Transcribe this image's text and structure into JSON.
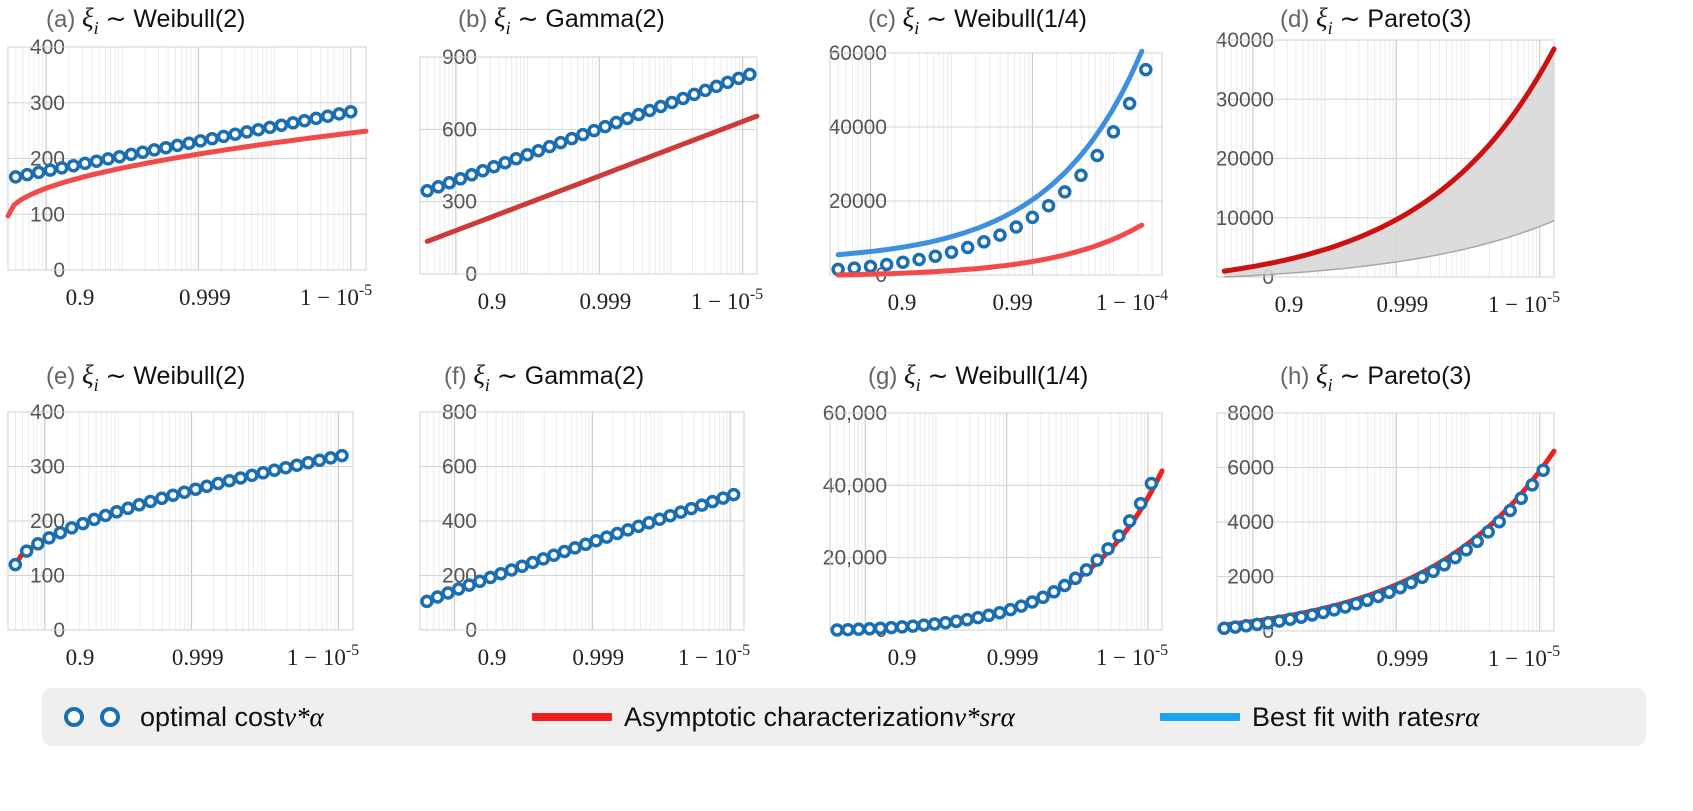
{
  "chart_data": [
    {
      "id": "a",
      "type": "line",
      "title": {
        "prefix": "(a)",
        "xi": "ξ",
        "sub": "i",
        "rest": "∼ Weibull(2)"
      },
      "xtick_labels": [
        "0.9",
        "0.999",
        "1 − 10^-5"
      ],
      "yticks": [
        {
          "value": 0,
          "label": "0"
        },
        {
          "value": 100,
          "label": "100"
        },
        {
          "value": 200,
          "label": "200"
        },
        {
          "value": 300,
          "label": "300"
        },
        {
          "value": 400,
          "label": "400"
        }
      ],
      "ylim": [
        0,
        400
      ],
      "xlim": [
        0.5,
        5.2
      ],
      "series": [
        {
          "name": "optimal cost v*_α",
          "kind": "markers",
          "color": "#1b6fb0",
          "from": 0.6,
          "to": 5.0,
          "n": 30,
          "y0": 167,
          "y1": 284,
          "shape": 1
        },
        {
          "name": "Asymptotic characterization v* s^r_α",
          "kind": "line",
          "color": "#f24a4a",
          "from": 0.5,
          "to": 5.2,
          "n": 60,
          "y0": 97,
          "y1": 249,
          "shape": 0.5
        }
      ]
    },
    {
      "id": "b",
      "type": "line",
      "title": {
        "prefix": "(b)",
        "xi": "ξ",
        "sub": "i",
        "rest": "∼ Gamma(2)"
      },
      "xtick_labels": [
        "0.9",
        "0.999",
        "1 − 10^-5"
      ],
      "yticks": [
        {
          "value": 0,
          "label": "0"
        },
        {
          "value": 300,
          "label": "300"
        },
        {
          "value": 600,
          "label": "600"
        },
        {
          "value": 900,
          "label": "900"
        }
      ],
      "ylim": [
        0,
        900
      ],
      "xlim": [
        0.5,
        5.2
      ],
      "series": [
        {
          "name": "optimal cost v*_α",
          "kind": "markers",
          "color": "#1b6fb0",
          "from": 0.6,
          "to": 5.1,
          "n": 30,
          "y0": 345,
          "y1": 828,
          "shape": 1
        },
        {
          "name": "Asymptotic characterization v* s^r_α",
          "kind": "line",
          "color": "#cc3a3a",
          "from": 0.6,
          "to": 5.2,
          "n": 60,
          "y0": 135,
          "y1": 655,
          "shape": 1
        }
      ]
    },
    {
      "id": "c",
      "type": "line",
      "title": {
        "prefix": "(c)",
        "xi": "ξ",
        "sub": "i",
        "rest": "∼ Weibull(1/4)"
      },
      "xtick_labels": [
        "0.9",
        "0.99",
        "1 − 10^-4"
      ],
      "yticks": [
        {
          "value": 0,
          "label": "0"
        },
        {
          "value": 20000,
          "label": "20000"
        },
        {
          "value": 40000,
          "label": "40000"
        },
        {
          "value": 60000,
          "label": "60000"
        }
      ],
      "ylim": [
        0,
        60000
      ],
      "xlim": [
        0.5,
        4.6
      ],
      "series": [
        {
          "name": "optimal cost v*_α",
          "kind": "markers",
          "color": "#1b6fb0",
          "from": 0.6,
          "to": 4.4,
          "n": 20,
          "y0": 1500,
          "y1": 55500,
          "shape": 3.4
        },
        {
          "name": "Best fit with rate s^r_α",
          "kind": "line",
          "color": "#3f8fe0",
          "from": 0.6,
          "to": 4.35,
          "n": 60,
          "y0": 5500,
          "y1": 60500,
          "shape": 3.4
        },
        {
          "name": "Asymptotic characterization v* s^r_α",
          "kind": "line",
          "color": "#f24a4a",
          "from": 0.6,
          "to": 4.35,
          "n": 60,
          "y0": 0,
          "y1": 13500,
          "shape": 3.4
        }
      ]
    },
    {
      "id": "d",
      "type": "area",
      "title": {
        "prefix": "(d)",
        "xi": "ξ",
        "sub": "i",
        "rest": "∼ Pareto(3)"
      },
      "xtick_labels": [
        "0.9",
        "0.999",
        "1 − 10^-5"
      ],
      "yticks": [
        {
          "value": 0,
          "label": "0"
        },
        {
          "value": 10000,
          "label": "10000"
        },
        {
          "value": 20000,
          "label": "20000"
        },
        {
          "value": 30000,
          "label": "30000"
        },
        {
          "value": 40000,
          "label": "40000"
        }
      ],
      "ylim": [
        0,
        40000
      ],
      "xlim": [
        0.5,
        5.2
      ],
      "series": [
        {
          "name": "band lower",
          "kind": "band-lower",
          "color": "#9a9a9a",
          "from": 0.6,
          "to": 5.2,
          "n": 60,
          "y0": 0,
          "y1": 9500,
          "shape": 2.2
        },
        {
          "name": "Asymptotic characterization v* s^r_α",
          "kind": "line",
          "color": "#cc1111",
          "from": 0.6,
          "to": 5.2,
          "n": 60,
          "y0": 1000,
          "y1": 38500,
          "shape": 2.6
        }
      ]
    },
    {
      "id": "e",
      "type": "line",
      "title": {
        "prefix": "(e)",
        "xi": "ξ",
        "sub": "i",
        "rest": "∼ Weibull(2)"
      },
      "xtick_labels": [
        "0.9",
        "0.999",
        "1 − 10^-5"
      ],
      "yticks": [
        {
          "value": 0,
          "label": "0"
        },
        {
          "value": 100,
          "label": "100"
        },
        {
          "value": 200,
          "label": "200"
        },
        {
          "value": 300,
          "label": "300"
        },
        {
          "value": 400,
          "label": "400"
        }
      ],
      "ylim": [
        0,
        400
      ],
      "xlim": [
        0.5,
        5.2
      ],
      "series": [
        {
          "name": "Asymptotic characterization v* s^r_α",
          "kind": "line",
          "color": "#f21d1d",
          "from": 0.6,
          "to": 5.05,
          "n": 60,
          "y0": 120,
          "y1": 320,
          "shape": 0.62
        },
        {
          "name": "optimal cost v*_α",
          "kind": "markers",
          "color": "#1b6fb0",
          "from": 0.6,
          "to": 5.05,
          "n": 30,
          "y0": 120,
          "y1": 320,
          "shape": 0.62
        }
      ]
    },
    {
      "id": "f",
      "type": "line",
      "title": {
        "prefix": "(f)",
        "xi": "ξ",
        "sub": "i",
        "rest": "∼ Gamma(2)"
      },
      "xtick_labels": [
        "0.9",
        "0.999",
        "1 − 10^-5"
      ],
      "yticks": [
        {
          "value": 0,
          "label": "0"
        },
        {
          "value": 200,
          "label": "200"
        },
        {
          "value": 400,
          "label": "400"
        },
        {
          "value": 600,
          "label": "600"
        },
        {
          "value": 800,
          "label": "800"
        }
      ],
      "ylim": [
        0,
        800
      ],
      "xlim": [
        0.5,
        5.2
      ],
      "series": [
        {
          "name": "Asymptotic characterization v* s^r_α",
          "kind": "line",
          "color": "#f21d1d",
          "from": 0.6,
          "to": 5.05,
          "n": 60,
          "y0": 105,
          "y1": 497,
          "shape": 0.95
        },
        {
          "name": "optimal cost v*_α",
          "kind": "markers",
          "color": "#1b6fb0",
          "from": 0.6,
          "to": 5.05,
          "n": 30,
          "y0": 105,
          "y1": 497,
          "shape": 0.95
        }
      ]
    },
    {
      "id": "g",
      "type": "line",
      "title": {
        "prefix": "(g)",
        "xi": "ξ",
        "sub": "i",
        "rest": "∼ Weibull(1/4)"
      },
      "xtick_labels": [
        "0.9",
        "0.999",
        "1 − 10^-5"
      ],
      "yticks": [
        {
          "value": 0,
          "label": "0"
        },
        {
          "value": 20000,
          "label": "20,000"
        },
        {
          "value": 40000,
          "label": "40,000"
        },
        {
          "value": 60000,
          "label": "60,000"
        }
      ],
      "ylim": [
        0,
        60000
      ],
      "xlim": [
        0.5,
        5.2
      ],
      "series": [
        {
          "name": "Asymptotic characterization v* s^r_α",
          "kind": "line",
          "color": "#f21d1d",
          "from": 0.6,
          "to": 5.2,
          "n": 60,
          "y0": 0,
          "y1": 44000,
          "shape": 4.2
        },
        {
          "name": "optimal cost v*_α",
          "kind": "markers",
          "color": "#1b6fb0",
          "from": 0.6,
          "to": 5.05,
          "n": 30,
          "y0": 0,
          "y1": 40500,
          "shape": 4.2
        }
      ]
    },
    {
      "id": "h",
      "type": "line",
      "title": {
        "prefix": "(h)",
        "xi": "ξ",
        "sub": "i",
        "rest": "∼ Pareto(3)"
      },
      "xtick_labels": [
        "0.9",
        "0.999",
        "1 − 10^-5"
      ],
      "yticks": [
        {
          "value": 0,
          "label": "0"
        },
        {
          "value": 2000,
          "label": "2000"
        },
        {
          "value": 4000,
          "label": "4000"
        },
        {
          "value": 6000,
          "label": "6000"
        },
        {
          "value": 8000,
          "label": "8000"
        }
      ],
      "ylim": [
        0,
        8000
      ],
      "xlim": [
        0.5,
        5.2
      ],
      "series": [
        {
          "name": "Asymptotic characterization v* s^r_α",
          "kind": "line",
          "color": "#f21d1d",
          "from": 0.6,
          "to": 5.2,
          "n": 60,
          "y0": 220,
          "y1": 6600,
          "shape": 2.6
        },
        {
          "name": "optimal cost v*_α",
          "kind": "markers",
          "color": "#1b6fb0",
          "from": 0.6,
          "to": 5.05,
          "n": 30,
          "y0": 100,
          "y1": 5900,
          "shape": 2.6
        }
      ]
    }
  ],
  "legend": {
    "optimal_label": "optimal cost ",
    "optimal_math": "v*α",
    "asymptotic_label": "Asymptotic characterization ",
    "asymptotic_math": "v*srα",
    "bestfit_label": "Best fit with rate ",
    "bestfit_math": "srα",
    "colors": {
      "marker": "#1b6fb0",
      "asymptotic": "#f21d1d",
      "bestfit": "#1aa3f0"
    }
  }
}
